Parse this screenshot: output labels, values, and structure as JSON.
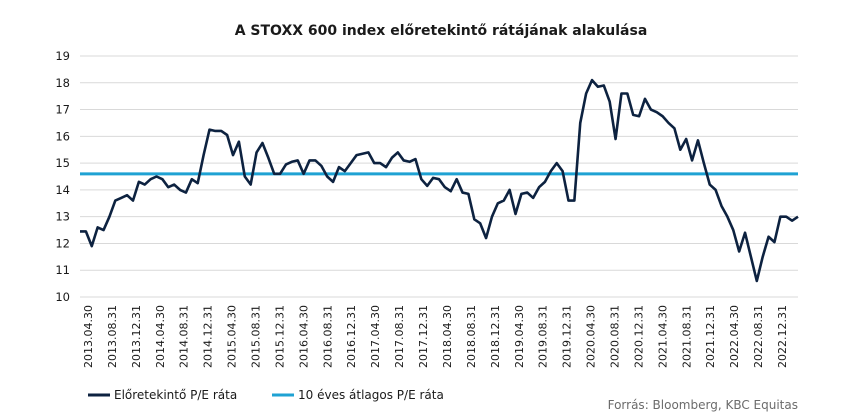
{
  "chart_data": {
    "type": "line",
    "title": "A STOXX 600 index előretekintő rátájának alakulása",
    "source": "Forrás: Bloomberg, KBC Equitas",
    "ylim": [
      10,
      19
    ],
    "yticks": [
      "10",
      "11",
      "12",
      "13",
      "14",
      "15",
      "16",
      "17",
      "18",
      "19"
    ],
    "grid": "horizontal",
    "legend_position": "bottom-left",
    "x_tick_labels": [
      "2013.04.30",
      "2013.08.31",
      "2013.12.31",
      "2014.04.30",
      "2014.08.31",
      "2014.12.31",
      "2015.04.30",
      "2015.08.31",
      "2015.12.31",
      "2016.04.30",
      "2016.08.31",
      "2016.12.31",
      "2017.04.30",
      "2017.08.31",
      "2017.12.31",
      "2018.04.30",
      "2018.08.31",
      "2018.12.31",
      "2019.04.30",
      "2019.08.31",
      "2019.12.31",
      "2020.04.30",
      "2020.08.31",
      "2020.12.31",
      "2021.04.30",
      "2021.08.31",
      "2021.12.31",
      "2022.04.30",
      "2022.08.31",
      "2022.12.31"
    ],
    "series": [
      {
        "name": "Előretekintő P/E ráta",
        "color": "#0d2240",
        "values": [
          12.45,
          12.45,
          11.9,
          12.6,
          12.5,
          13.0,
          13.6,
          13.7,
          13.8,
          13.6,
          14.3,
          14.2,
          14.4,
          14.5,
          14.4,
          14.1,
          14.2,
          14.0,
          13.9,
          14.4,
          14.25,
          15.3,
          16.25,
          16.2,
          16.2,
          16.05,
          15.3,
          15.8,
          14.5,
          14.2,
          15.4,
          15.75,
          15.2,
          14.6,
          14.6,
          14.95,
          15.05,
          15.1,
          14.6,
          15.1,
          15.1,
          14.9,
          14.5,
          14.3,
          14.85,
          14.7,
          15.0,
          15.3,
          15.35,
          15.4,
          15.0,
          15.0,
          14.85,
          15.2,
          15.4,
          15.1,
          15.05,
          15.15,
          14.4,
          14.15,
          14.45,
          14.4,
          14.1,
          13.95,
          14.4,
          13.9,
          13.85,
          12.9,
          12.75,
          12.2,
          13.0,
          13.5,
          13.6,
          14.0,
          13.1,
          13.85,
          13.9,
          13.7,
          14.1,
          14.3,
          14.7,
          15.0,
          14.7,
          13.6,
          13.6,
          16.5,
          17.6,
          18.1,
          17.85,
          17.9,
          17.3,
          15.9,
          17.6,
          17.6,
          16.8,
          16.75,
          17.4,
          17.0,
          16.9,
          16.75,
          16.5,
          16.3,
          15.5,
          15.9,
          15.1,
          15.85,
          15.0,
          14.2,
          14.0,
          13.4,
          13.0,
          12.5,
          11.7,
          12.4,
          11.5,
          10.6,
          11.5,
          12.25,
          12.05,
          13.0,
          13.0,
          12.85,
          13.0
        ]
      },
      {
        "name": "10 éves átlagos P/E ráta",
        "color": "#1fa2d3",
        "values": [
          14.6
        ]
      }
    ]
  }
}
